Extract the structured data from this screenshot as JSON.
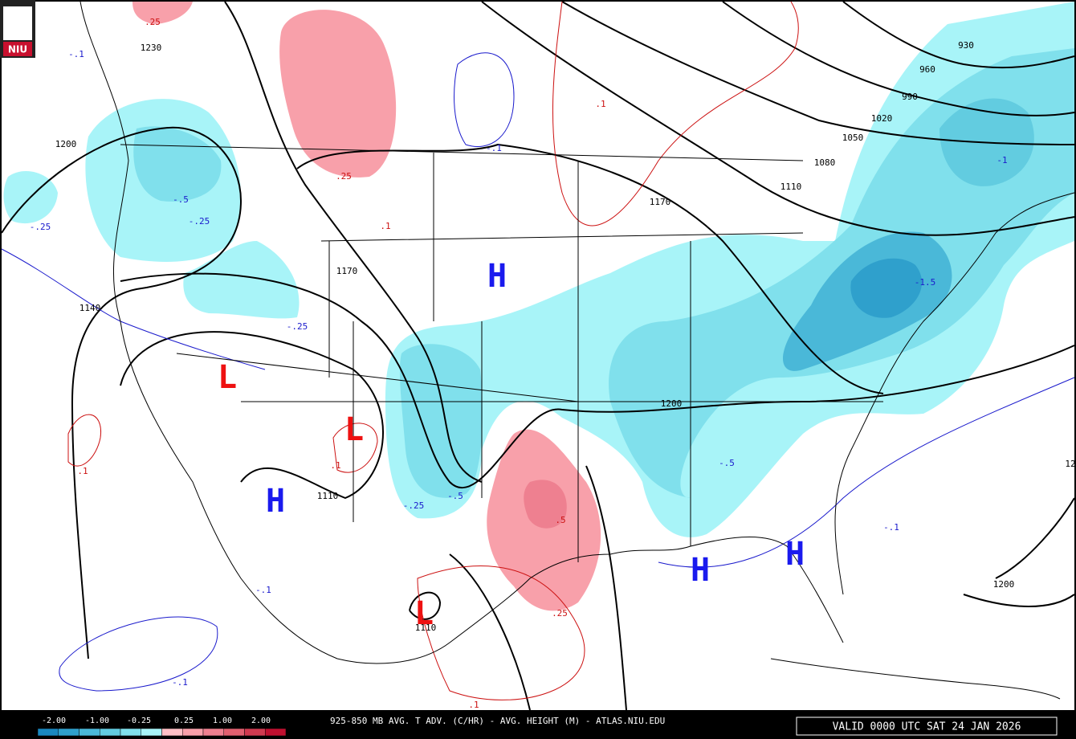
{
  "logo": {
    "text": "NIU"
  },
  "map": {
    "contour_labels": [
      {
        "text": "-.1",
        "color": "#1a1acc"
      },
      {
        "text": "1230",
        "color": "#000000"
      },
      {
        "text": ".25",
        "color": "#cc1111"
      },
      {
        "text": "1200",
        "color": "#000000"
      },
      {
        "text": "-.5",
        "color": "#1a1acc"
      },
      {
        "text": "-.25",
        "color": "#1a1acc"
      },
      {
        "text": "-.25",
        "color": "#1a1acc"
      },
      {
        "text": "-.1",
        "color": "#1a1acc"
      },
      {
        "text": ".25",
        "color": "#cc1111"
      },
      {
        "text": ".1",
        "color": "#cc1111"
      },
      {
        "text": ".1",
        "color": "#cc1111"
      },
      {
        "text": "1170",
        "color": "#000000"
      },
      {
        "text": "1140",
        "color": "#000000"
      },
      {
        "text": "-.25",
        "color": "#1a1acc"
      },
      {
        "text": "1170",
        "color": "#000000"
      },
      {
        "text": "1110",
        "color": "#000000"
      },
      {
        "text": "1080",
        "color": "#000000"
      },
      {
        "text": "1050",
        "color": "#000000"
      },
      {
        "text": "1020",
        "color": "#000000"
      },
      {
        "text": "990",
        "color": "#000000"
      },
      {
        "text": "960",
        "color": "#000000"
      },
      {
        "text": "930",
        "color": "#000000"
      },
      {
        "text": "-1",
        "color": "#1a1acc"
      },
      {
        "text": "-1.5",
        "color": "#1a1acc"
      },
      {
        "text": "1200",
        "color": "#000000"
      },
      {
        "text": "-.5",
        "color": "#1a1acc"
      },
      {
        "text": ".1",
        "color": "#cc1111"
      },
      {
        "text": ".1",
        "color": "#cc1111"
      },
      {
        "text": "1110",
        "color": "#000000"
      },
      {
        "text": "-.25",
        "color": "#1a1acc"
      },
      {
        "text": "-.5",
        "color": "#1a1acc"
      },
      {
        "text": ".5",
        "color": "#cc1111"
      },
      {
        "text": "-.1",
        "color": "#1a1acc"
      },
      {
        "text": "1200",
        "color": "#000000"
      },
      {
        "text": "-.1",
        "color": "#1a1acc"
      },
      {
        "text": ".25",
        "color": "#cc1111"
      },
      {
        "text": "1110",
        "color": "#000000"
      },
      {
        "text": ".1",
        "color": "#cc1111"
      },
      {
        "text": "-.1",
        "color": "#1a1acc"
      },
      {
        "text": "12",
        "color": "#000000"
      }
    ],
    "pressure_centers": [
      {
        "text": "H",
        "color": "#1a1aee"
      },
      {
        "text": "H",
        "color": "#1a1aee"
      },
      {
        "text": "H",
        "color": "#1a1aee"
      },
      {
        "text": "H",
        "color": "#1a1aee"
      },
      {
        "text": "L",
        "color": "#ee1111"
      },
      {
        "text": "L",
        "color": "#ee1111"
      },
      {
        "text": "L",
        "color": "#ee1111"
      }
    ]
  },
  "colorbar": {
    "labels": [
      "-2.00",
      "-1.00",
      "-0.25",
      "0.25",
      "1.00",
      "2.00"
    ],
    "colors": [
      "#1a88c0",
      "#2fa0cc",
      "#4ab8d8",
      "#62cce0",
      "#80e0ec",
      "#a8f4f8",
      "#ffc0c6",
      "#f8a0aa",
      "#ee8090",
      "#e06070",
      "#d03a50",
      "#c01030"
    ]
  },
  "footer": {
    "title": "925-850 MB AVG. T ADV. (C/HR) - AVG. HEIGHT (M) - ATLAS.NIU.EDU",
    "valid": "VALID 0000 UTC SAT 24 JAN 2026"
  }
}
